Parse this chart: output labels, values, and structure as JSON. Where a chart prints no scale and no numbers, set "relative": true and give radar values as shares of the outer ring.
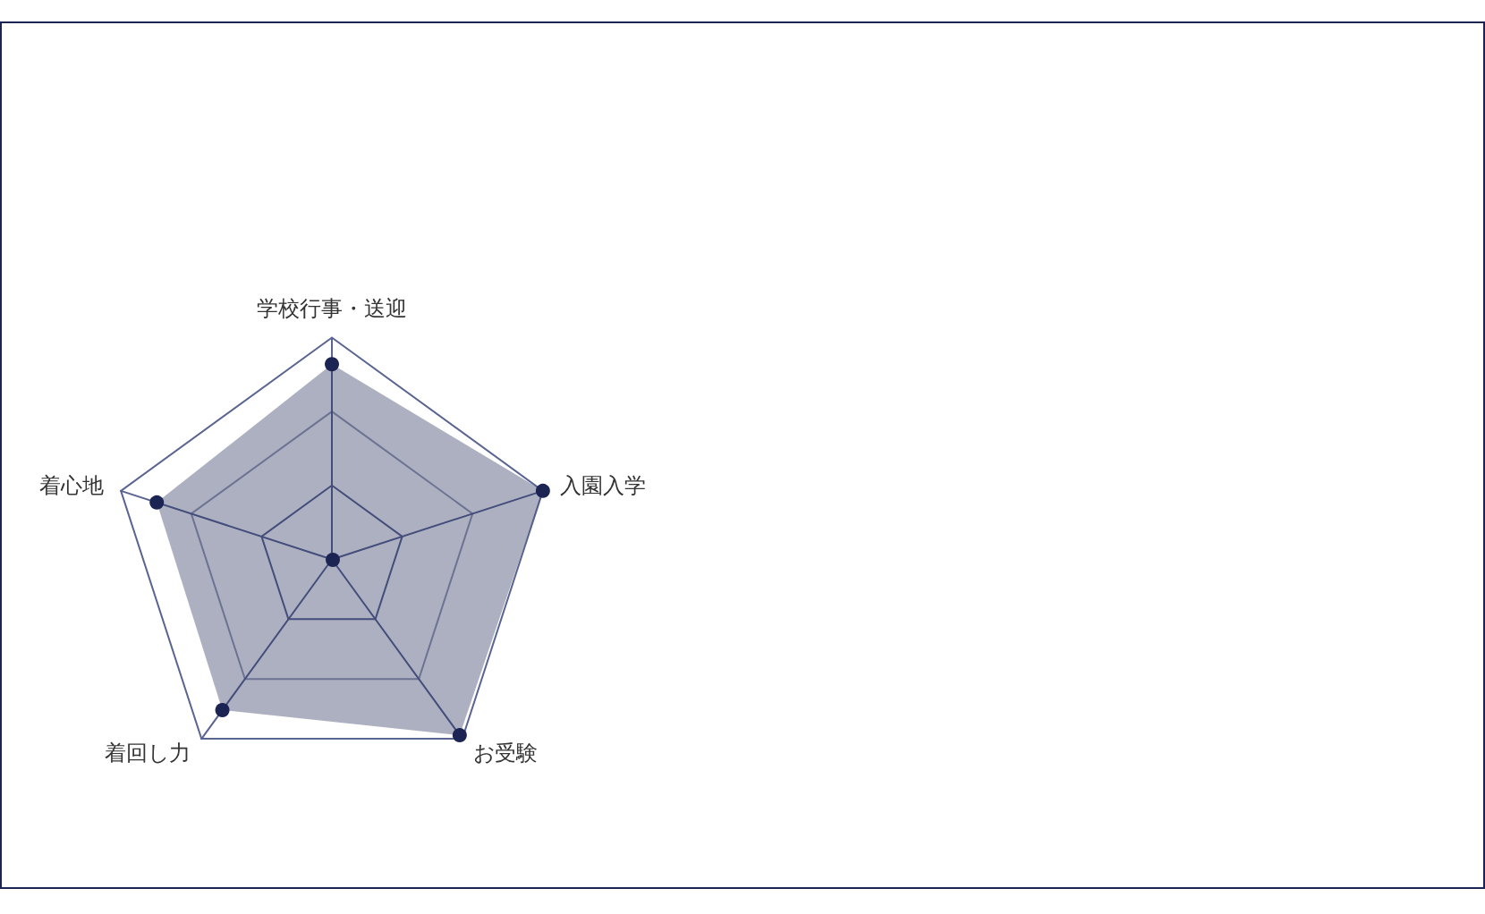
{
  "chart_data": {
    "type": "radar",
    "relative": true,
    "categories": [
      "学校行事・送迎",
      "入園入学",
      "お受験",
      "着回し力",
      "着心地"
    ],
    "series": [
      {
        "color": "#1b2452",
        "values": [
          0.88,
          1.0,
          0.98,
          0.84,
          0.83
        ]
      }
    ],
    "marker": "circle"
  }
}
